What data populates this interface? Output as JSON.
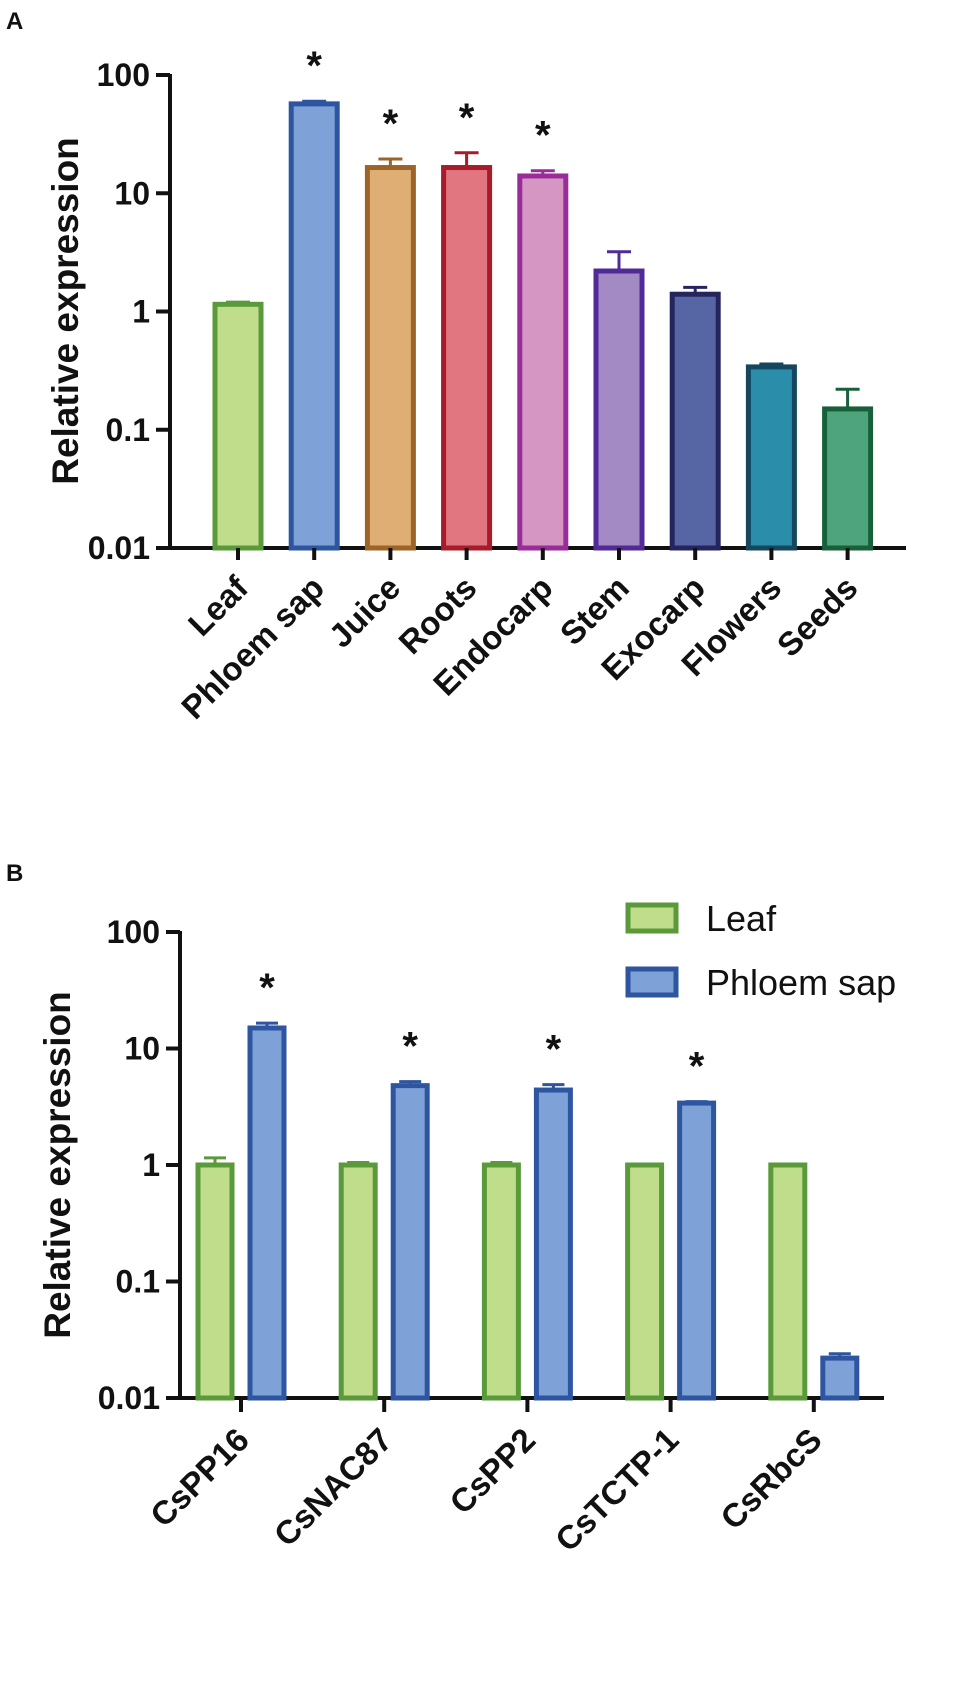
{
  "chart_data": [
    {
      "panel": "A",
      "type": "bar",
      "yscale": "log",
      "ylabel": "Relative expression",
      "ylim": [
        0.01,
        100
      ],
      "yticks": [
        "0.01",
        "0.1",
        "1",
        "10",
        "100"
      ],
      "categories": [
        "Leaf",
        "Phloem sap",
        "Juice",
        "Roots",
        "Endocarp",
        "Stem",
        "Exocarp",
        "Flowers",
        "Seeds"
      ],
      "values": [
        1.15,
        57,
        16.5,
        16.5,
        14,
        2.2,
        1.4,
        0.34,
        0.15
      ],
      "errors_upper": [
        1.2,
        60,
        19.5,
        22,
        15.5,
        3.2,
        1.6,
        0.36,
        0.22
      ],
      "significant": [
        false,
        true,
        true,
        true,
        true,
        false,
        false,
        false,
        false
      ],
      "fill_colors": [
        "#c0dd8c",
        "#7ea1d8",
        "#dfae74",
        "#e17680",
        "#d596c3",
        "#a38ac4",
        "#5666a4",
        "#2a8daa",
        "#4ea47c"
      ],
      "edge_colors": [
        "#5a9a3a",
        "#2d55a0",
        "#9c6428",
        "#a51c2a",
        "#9a2c9a",
        "#522a98",
        "#25255e",
        "#16465e",
        "#17603a"
      ]
    },
    {
      "panel": "B",
      "type": "bar",
      "yscale": "log",
      "ylabel": "Relative expression",
      "ylim": [
        0.01,
        100
      ],
      "yticks": [
        "0.01",
        "0.1",
        "1",
        "10",
        "100"
      ],
      "categories": [
        "CsPP16",
        "CsNAC87",
        "CsPP2",
        "CsTCTP-1",
        "CsRbcS"
      ],
      "series": [
        {
          "name": "Leaf",
          "values": [
            1.0,
            1.0,
            1.0,
            1.0,
            1.0
          ],
          "errors_upper": [
            1.15,
            1.05,
            1.05,
            1.02,
            1.0
          ],
          "significant": [
            false,
            false,
            false,
            false,
            false
          ],
          "fill": "#c0dd8c",
          "edge": "#5a9a3a"
        },
        {
          "name": "Phloem sap",
          "values": [
            15,
            4.8,
            4.4,
            3.4,
            0.022
          ],
          "errors_upper": [
            16.5,
            5.2,
            4.9,
            3.5,
            0.024
          ],
          "significant": [
            true,
            true,
            true,
            true,
            false
          ],
          "fill": "#7ea1d8",
          "edge": "#2d55a0"
        }
      ]
    }
  ],
  "panel_labels": [
    "A",
    "B"
  ],
  "significance_marker": "*",
  "legend": [
    "Leaf",
    "Phloem sap"
  ]
}
